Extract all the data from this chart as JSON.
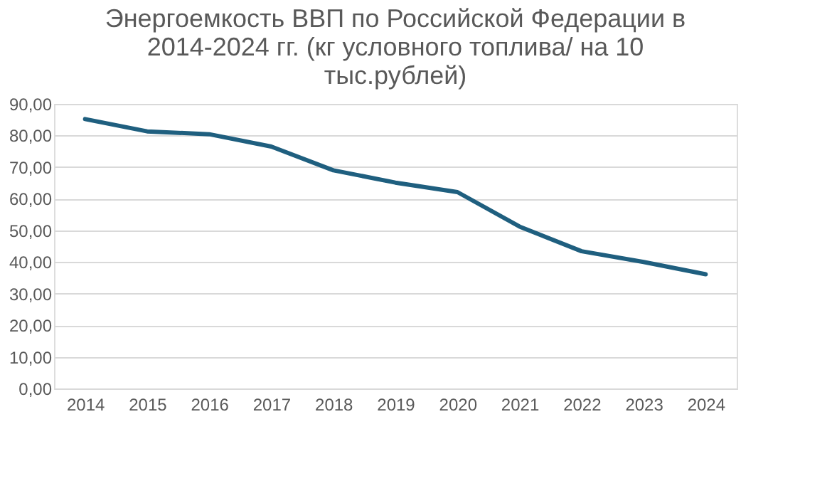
{
  "chart_data": {
    "type": "line",
    "title": "Энергоемкость ВВП по Российской Федерации в 2014-2024 гг. (кг условного топлива/  на 10 тыс.рублей)",
    "categories": [
      "2014",
      "2015",
      "2016",
      "2017",
      "2018",
      "2019",
      "2020",
      "2021",
      "2022",
      "2023",
      "2024"
    ],
    "series": [
      {
        "color": "#1f5f7f",
        "values": [
          85.2,
          81.3,
          80.4,
          76.5,
          69.0,
          65.1,
          62.1,
          51.2,
          43.4,
          40.0,
          36.1
        ]
      }
    ],
    "ylim": [
      0,
      90
    ],
    "yticks": [
      {
        "value": 0,
        "label": "0,00"
      },
      {
        "value": 10,
        "label": "10,00"
      },
      {
        "value": 20,
        "label": "20,00"
      },
      {
        "value": 30,
        "label": "30,00"
      },
      {
        "value": 40,
        "label": "40,00"
      },
      {
        "value": 50,
        "label": "50,00"
      },
      {
        "value": 60,
        "label": "60,00"
      },
      {
        "value": 70,
        "label": "70,00"
      },
      {
        "value": 80,
        "label": "80,00"
      },
      {
        "value": 90,
        "label": "90,00"
      }
    ],
    "grid": "y",
    "marker": "none",
    "line_style": "solid"
  }
}
